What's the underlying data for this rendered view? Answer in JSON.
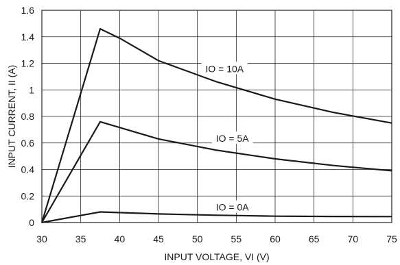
{
  "chart_data": {
    "type": "line",
    "title": "",
    "xlabel": "INPUT VOLTAGE, VI (V)",
    "ylabel": "INPUT CURRENT, II (A)",
    "xlim": [
      30,
      75
    ],
    "ylim": [
      0,
      1.6
    ],
    "x_ticks": [
      30,
      35,
      40,
      45,
      50,
      55,
      60,
      65,
      70,
      75
    ],
    "x_tick_labels": [
      "30",
      "35",
      "40",
      "45",
      "50",
      "55",
      "60",
      "65",
      "70",
      "75"
    ],
    "y_ticks": [
      0,
      0.2,
      0.4,
      0.6,
      0.8,
      1.0,
      1.2,
      1.4,
      1.6
    ],
    "y_tick_labels": [
      "0",
      "0.2",
      "0.4",
      "0.6",
      "0.8",
      "1",
      "1.2",
      "1.4",
      "1.6"
    ],
    "grid": true,
    "series": [
      {
        "name": "IO = 10A",
        "points": [
          [
            30,
            0
          ],
          [
            37.5,
            1.46
          ],
          [
            40,
            1.39
          ],
          [
            45,
            1.22
          ],
          [
            52.5,
            1.06
          ],
          [
            60,
            0.93
          ],
          [
            67.5,
            0.83
          ],
          [
            75,
            0.75
          ]
        ]
      },
      {
        "name": "IO = 5A",
        "points": [
          [
            30,
            0
          ],
          [
            37.5,
            0.76
          ],
          [
            45,
            0.63
          ],
          [
            52.5,
            0.545
          ],
          [
            60,
            0.48
          ],
          [
            67.5,
            0.43
          ],
          [
            75,
            0.39
          ]
        ]
      },
      {
        "name": "IO = 0A",
        "points": [
          [
            30,
            0
          ],
          [
            37.5,
            0.08
          ],
          [
            45,
            0.065
          ],
          [
            52.5,
            0.055
          ],
          [
            60,
            0.048
          ],
          [
            67.5,
            0.046
          ],
          [
            75,
            0.045
          ]
        ]
      }
    ],
    "series_labels": [
      {
        "series": 0,
        "x": 53.5,
        "y": 1.16
      },
      {
        "series": 1,
        "x": 54.5,
        "y": 0.635
      },
      {
        "series": 2,
        "x": 54.5,
        "y": 0.115
      }
    ]
  }
}
